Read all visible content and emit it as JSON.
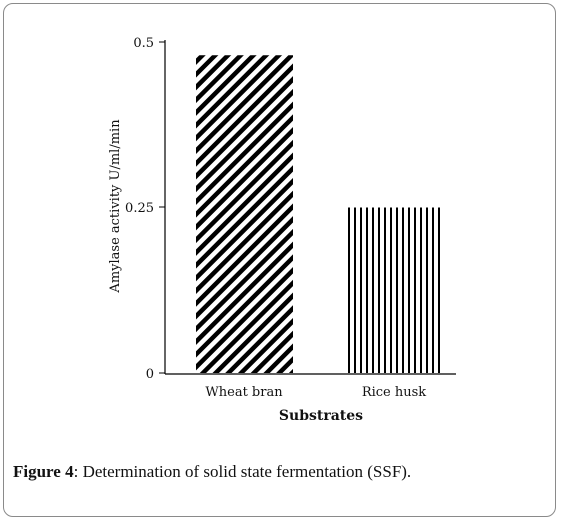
{
  "caption": {
    "label": "Figure 4",
    "text": ": Determination of solid state fermentation (SSF)."
  },
  "chart_data": {
    "type": "bar",
    "categories": [
      "Wheat bran",
      "Rice husk"
    ],
    "values": [
      0.48,
      0.25
    ],
    "title": "",
    "xlabel": "Substrates",
    "ylabel": "Amylase activity U/ml/min",
    "ylim": [
      0,
      0.5
    ],
    "yticks": [
      "0",
      "0.25",
      "0.5"
    ],
    "grid": false,
    "fill_patterns": [
      "diagonal-hatch",
      "vertical-lines"
    ],
    "colors": {
      "ink": "#000000",
      "background": "#ffffff"
    }
  }
}
